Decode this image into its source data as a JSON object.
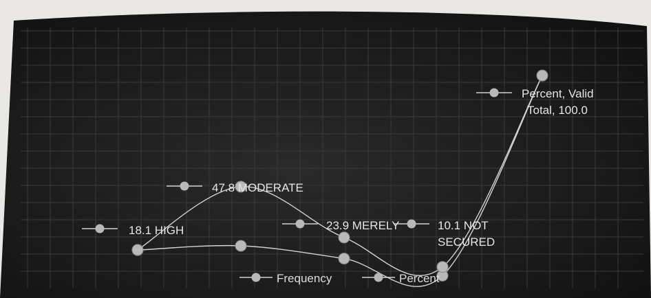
{
  "chart_data": {
    "type": "line",
    "categories": [
      "HIGH",
      "MODERATE",
      "MERELY",
      "NOT SECURED",
      "Valid Total"
    ],
    "series": [
      {
        "name": "Frequency",
        "values": [
          18,
          20,
          14,
          6,
          100
        ]
      },
      {
        "name": "Percent",
        "values": [
          18.1,
          47.8,
          23.9,
          10.1,
          100.0
        ]
      }
    ],
    "data_labels": [
      {
        "lines": [
          "18.1 HIGH"
        ]
      },
      {
        "lines": [
          "47.8 MODERATE"
        ]
      },
      {
        "lines": [
          "23.9 MERELY"
        ]
      },
      {
        "lines": [
          "10.1 NOT",
          "SECURED"
        ]
      },
      {
        "lines": [
          "Percent, Valid",
          "Total, 100.0"
        ]
      }
    ],
    "legend": [
      "Frequency",
      "Percent"
    ],
    "legend_position": "bottom",
    "grid": true,
    "colors": {
      "background": "#1b1b1b",
      "line": "#d2d2d2",
      "marker": "#b9b9b9",
      "text": "#e6e6e6",
      "grid": "#3a3a3a"
    }
  }
}
